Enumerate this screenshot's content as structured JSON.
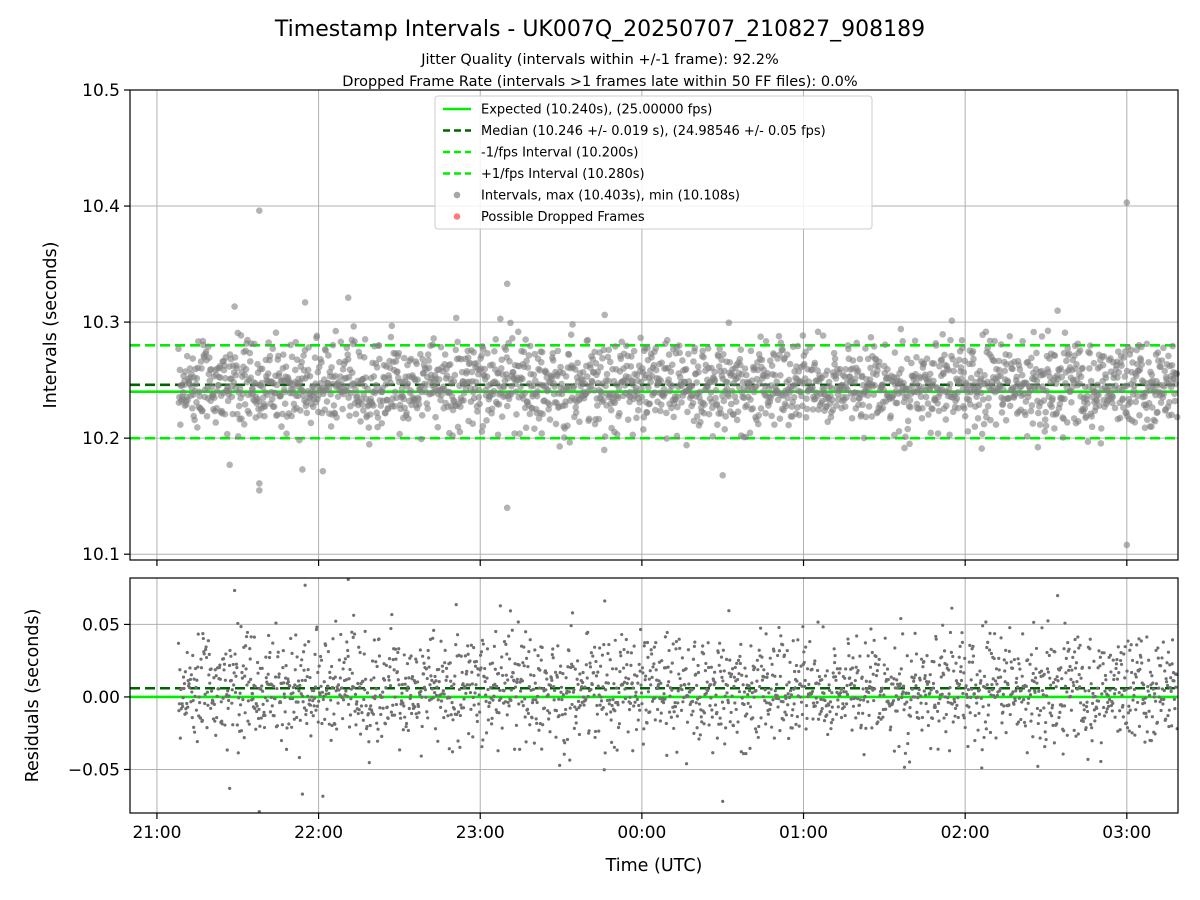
{
  "chart_data": {
    "type": "scatter",
    "title": "Timestamp Intervals - UK007Q_20250707_210827_908189",
    "subtitle_1": "Jitter Quality (intervals within +/-1 frame): 92.2%",
    "subtitle_2": "Dropped Frame Rate (intervals >1 frames late within 50 FF files): 0.0%",
    "xlabel": "Time (UTC)",
    "x_tick_labels": [
      "21:00",
      "22:00",
      "23:00",
      "00:00",
      "01:00",
      "02:00",
      "03:00"
    ],
    "x_range": [
      "2025-07-07T20:50",
      "2025-07-08T03:19"
    ],
    "data_x_range": [
      "2025-07-07T21:08",
      "2025-07-08T03:19"
    ],
    "grid": true,
    "legend_placement": "top-center",
    "colors": {
      "expected": "#00ee00",
      "median": "#006400",
      "bound": "#00ee00",
      "intervals": "#808080",
      "dropped": "#ff4444"
    },
    "top_panel": {
      "ylabel": "Intervals (seconds)",
      "ylim": [
        10.095,
        10.5
      ],
      "y_ticks": [
        10.1,
        10.2,
        10.3,
        10.4,
        10.5
      ],
      "y_tick_labels": [
        "10.1",
        "10.2",
        "10.3",
        "10.4",
        "10.5"
      ],
      "lines": [
        {
          "name": "Expected (10.240s), (25.00000 fps)",
          "y": 10.24,
          "style": "solid",
          "color": "#00ee00"
        },
        {
          "name": "Median (10.246 +/- 0.019 s), (24.98546 +/- 0.05 fps)",
          "y": 10.246,
          "style": "dashed",
          "color": "#006400"
        },
        {
          "name": "-1/fps Interval (10.200s)",
          "y": 10.2,
          "style": "dashed",
          "color": "#00ee00"
        },
        {
          "name": "+1/fps Interval (10.280s)",
          "y": 10.28,
          "style": "dashed",
          "color": "#00ee00"
        }
      ],
      "series": [
        {
          "name": "Intervals, max (10.403s), min (10.108s)",
          "color": "#808080",
          "max": 10.403,
          "min": 10.108,
          "mean": 10.246,
          "std": 0.019
        },
        {
          "name": "Possible Dropped Frames",
          "color": "#ff4444",
          "count": 0
        }
      ],
      "notable_points": [
        {
          "x": "2025-07-08T03:00",
          "y": 10.403
        },
        {
          "x": "2025-07-07T21:38",
          "y": 10.396
        },
        {
          "x": "2025-07-07T23:10",
          "y": 10.333
        },
        {
          "x": "2025-07-07T22:11",
          "y": 10.321
        },
        {
          "x": "2025-07-07T21:55",
          "y": 10.317
        },
        {
          "x": "2025-07-07T23:10",
          "y": 10.14
        },
        {
          "x": "2025-07-07T21:38",
          "y": 10.155
        },
        {
          "x": "2025-07-07T21:38",
          "y": 10.161
        },
        {
          "x": "2025-07-07T21:54",
          "y": 10.173
        },
        {
          "x": "2025-07-07T21:27",
          "y": 10.177
        },
        {
          "x": "2025-07-08T00:30",
          "y": 10.168
        },
        {
          "x": "2025-07-08T03:00",
          "y": 10.108
        }
      ]
    },
    "bottom_panel": {
      "ylabel": "Residuals (seconds)",
      "ylim": [
        -0.08,
        0.082
      ],
      "y_ticks": [
        -0.05,
        0.0,
        0.05
      ],
      "y_tick_labels": [
        "−0.05",
        "0.00",
        "0.05"
      ],
      "lines": [
        {
          "name": "zero",
          "y": 0.0,
          "style": "solid",
          "color": "#00ee00"
        },
        {
          "name": "median offset",
          "y": 0.006,
          "style": "dashed",
          "color": "#006400"
        }
      ],
      "series": [
        {
          "name": "Residuals",
          "color": "#707070",
          "mean": 0.006,
          "std": 0.019
        }
      ]
    }
  }
}
